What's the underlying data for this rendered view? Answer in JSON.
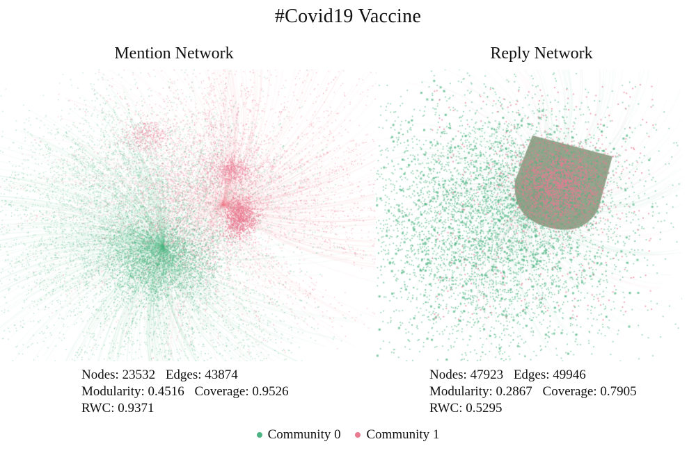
{
  "title": "#Covid19 Vaccine",
  "colors": {
    "community_0": "#4cb482",
    "community_1": "#ea7a92",
    "hub": "#8a9a7f"
  },
  "panels": [
    {
      "title": "Mention Network",
      "stats": {
        "nodes_label": "Nodes:",
        "nodes": "23532",
        "edges_label": "Edges:",
        "edges": "43874",
        "modularity_label": "Modularity:",
        "modularity": "0.4516",
        "coverage_label": "Coverage:",
        "coverage": "0.9526",
        "rwc_label": "RWC:",
        "rwc": "0.9371"
      }
    },
    {
      "title": "Reply Network",
      "stats": {
        "nodes_label": "Nodes:",
        "nodes": "47923",
        "edges_label": "Edges:",
        "edges": "49946",
        "modularity_label": "Modularity:",
        "modularity": "0.2867",
        "coverage_label": "Coverage:",
        "coverage": "0.7905",
        "rwc_label": "RWC:",
        "rwc": "0.5295"
      }
    }
  ],
  "legend": [
    {
      "label": "Community 0",
      "color": "#4cb482"
    },
    {
      "label": "Community 1",
      "color": "#ea7a92"
    }
  ]
}
